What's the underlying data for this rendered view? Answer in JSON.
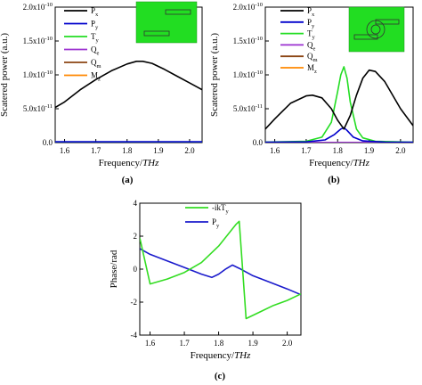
{
  "chart_data": [
    {
      "type": "line",
      "panel_label": "(a)",
      "xlabel_plain": "Frequency/",
      "xlabel_italic": "THz",
      "ylabel": "Scatered power (a.u.)",
      "xlim": [
        1.57,
        2.04
      ],
      "ylim": [
        -0.0,
        2e-10
      ],
      "x_ticks": [
        "1.6",
        "1.7",
        "1.8",
        "1.9",
        "2.0"
      ],
      "y_ticks": [
        {
          "v": 0,
          "label": "0.0"
        },
        {
          "v": 5e-11,
          "label": "5.0x10",
          "exp": "-11"
        },
        {
          "v": 1e-10,
          "label": "1.0x10",
          "exp": "-10"
        },
        {
          "v": 1.5e-10,
          "label": "1.5x10",
          "exp": "-10"
        },
        {
          "v": 2e-10,
          "label": "2.0x10",
          "exp": "-10"
        }
      ],
      "legend_position": "top-left",
      "inset": "green square with two bar outlines",
      "series": [
        {
          "name": "P",
          "sub": "x",
          "color": "#000000",
          "x": [
            1.57,
            1.6,
            1.65,
            1.7,
            1.75,
            1.8,
            1.83,
            1.85,
            1.88,
            1.92,
            1.96,
            2.0,
            2.04
          ],
          "y": [
            5.2e-11,
            6e-11,
            7.8e-11,
            9.3e-11,
            1.06e-10,
            1.16e-10,
            1.2e-10,
            1.2e-10,
            1.17e-10,
            1.08e-10,
            9.8e-11,
            8.8e-11,
            7.8e-11
          ]
        },
        {
          "name": "P",
          "sub": "y",
          "color": "#0000cc",
          "x": [
            1.57,
            2.04
          ],
          "y": [
            1.2e-12,
            1.2e-12
          ]
        },
        {
          "name": "T",
          "sub": "y",
          "color": "#22dd22",
          "x": [
            1.57,
            2.04
          ],
          "y": [
            8e-13,
            8e-13
          ]
        },
        {
          "name": "Q",
          "sub": "e",
          "color": "#9b30d0",
          "x": [
            1.57,
            2.04
          ],
          "y": [
            4e-13,
            4e-13
          ]
        },
        {
          "name": "Q",
          "sub": "m",
          "color": "#8b4513",
          "x": [
            1.57,
            2.04
          ],
          "y": [
            2e-13,
            2e-13
          ]
        },
        {
          "name": "M",
          "sub": "z",
          "color": "#ff8800",
          "x": [
            1.57,
            2.04
          ],
          "y": [
            0.0,
            0.0
          ]
        }
      ]
    },
    {
      "type": "line",
      "panel_label": "(b)",
      "xlabel_plain": "Frequency/",
      "xlabel_italic": "THz",
      "ylabel": "Scatered power (a.u.)",
      "xlim": [
        1.57,
        2.04
      ],
      "ylim": [
        -0.0,
        2e-10
      ],
      "x_ticks": [
        "1.6",
        "1.7",
        "1.8",
        "1.9",
        "2.0"
      ],
      "y_ticks": [
        {
          "v": 0,
          "label": "0.0"
        },
        {
          "v": 5e-11,
          "label": "5.0x10",
          "exp": "-11"
        },
        {
          "v": 1e-10,
          "label": "1.0x10",
          "exp": "-10"
        },
        {
          "v": 1.5e-10,
          "label": "1.5x10",
          "exp": "-10"
        },
        {
          "v": 2e-10,
          "label": "2.0x10",
          "exp": "-10"
        }
      ],
      "legend_position": "top-left",
      "inset": "green square with ring and bar outlines",
      "series": [
        {
          "name": "P",
          "sub": "x",
          "color": "#000000",
          "x": [
            1.57,
            1.6,
            1.65,
            1.7,
            1.72,
            1.75,
            1.78,
            1.8,
            1.82,
            1.84,
            1.86,
            1.88,
            1.9,
            1.92,
            1.95,
            2.0,
            2.04
          ],
          "y": [
            2e-11,
            3.5e-11,
            5.8e-11,
            6.9e-11,
            7e-11,
            6.6e-11,
            5e-11,
            3.3e-11,
            2e-11,
            4e-11,
            7e-11,
            9.5e-11,
            1.07e-10,
            1.05e-10,
            9e-11,
            5e-11,
            2.5e-11
          ]
        },
        {
          "name": "P",
          "sub": "y",
          "color": "#0000cc",
          "x": [
            1.57,
            1.7,
            1.76,
            1.79,
            1.81,
            1.82,
            1.83,
            1.85,
            1.88,
            1.95,
            2.04
          ],
          "y": [
            5e-13,
            1e-12,
            4e-12,
            1.2e-11,
            2e-11,
            2.2e-11,
            1.8e-11,
            8e-12,
            2.5e-12,
            8e-13,
            5e-13
          ]
        },
        {
          "name": "T",
          "sub": "y",
          "color": "#22dd22",
          "x": [
            1.57,
            1.7,
            1.75,
            1.78,
            1.8,
            1.81,
            1.82,
            1.83,
            1.84,
            1.86,
            1.88,
            1.92,
            2.04
          ],
          "y": [
            8e-13,
            2e-12,
            8e-12,
            3e-11,
            7.5e-11,
            1e-10,
            1.12e-10,
            9.5e-11,
            6e-11,
            2e-11,
            7e-12,
            2e-12,
            5e-13
          ]
        },
        {
          "name": "Q",
          "sub": "e",
          "color": "#9b30d0",
          "x": [
            1.57,
            2.04
          ],
          "y": [
            3e-13,
            3e-13
          ]
        },
        {
          "name": "Q",
          "sub": "m",
          "color": "#8b4513",
          "x": [
            1.57,
            2.04
          ],
          "y": [
            2e-13,
            2e-13
          ]
        },
        {
          "name": "M",
          "sub": "z",
          "color": "#ff8800",
          "x": [
            1.57,
            2.04
          ],
          "y": [
            0.0,
            0.0
          ]
        }
      ]
    },
    {
      "type": "line",
      "panel_label": "(c)",
      "xlabel_plain": "Frequency/",
      "xlabel_italic": "THz",
      "ylabel": "Phase/rad",
      "xlim": [
        1.57,
        2.04
      ],
      "ylim": [
        -4,
        4
      ],
      "x_ticks": [
        "1.6",
        "1.7",
        "1.8",
        "1.9",
        "2.0"
      ],
      "y_ticks": [
        {
          "v": -4,
          "label": "-4"
        },
        {
          "v": -2,
          "label": "-2"
        },
        {
          "v": 0,
          "label": "0"
        },
        {
          "v": 2,
          "label": "2"
        },
        {
          "v": 4,
          "label": "4"
        }
      ],
      "legend_position": "top-right",
      "series": [
        {
          "name": "-ikT",
          "sub": "y",
          "color": "#33dd22",
          "x": [
            1.57,
            1.6,
            1.65,
            1.7,
            1.75,
            1.8,
            1.85,
            1.86,
            1.87,
            1.88,
            1.92,
            1.96,
            2.0,
            2.04
          ],
          "y": [
            1.9,
            -0.9,
            -0.6,
            -0.2,
            0.4,
            1.4,
            2.7,
            2.9,
            0.0,
            -3.0,
            -2.6,
            -2.2,
            -1.9,
            -1.5
          ]
        },
        {
          "name": "P",
          "sub": "y",
          "color": "#1a1acc",
          "x": [
            1.57,
            1.6,
            1.65,
            1.7,
            1.75,
            1.78,
            1.8,
            1.82,
            1.84,
            1.86,
            1.9,
            1.95,
            2.0,
            2.04
          ],
          "y": [
            1.25,
            0.9,
            0.5,
            0.1,
            -0.3,
            -0.5,
            -0.3,
            0.0,
            0.25,
            0.05,
            -0.4,
            -0.8,
            -1.2,
            -1.55
          ]
        }
      ]
    }
  ]
}
